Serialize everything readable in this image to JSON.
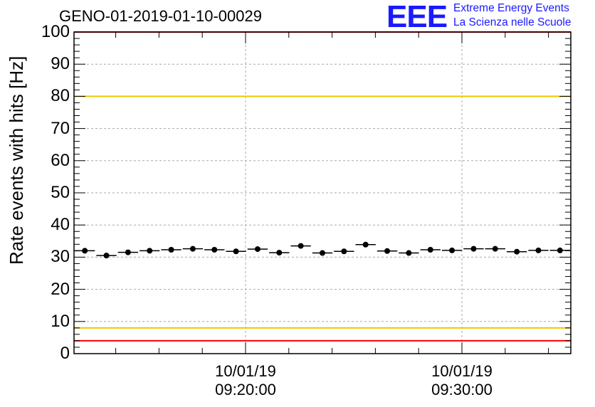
{
  "title": "GENO-01-2019-01-10-00029",
  "logo": {
    "mark": "EEE",
    "line1": "Extreme Energy Events",
    "line2": "La Scienza nelle Scuole",
    "color": "#1a1aff"
  },
  "chart_data": {
    "type": "scatter",
    "ylabel": "Rate events with hits [Hz]",
    "xlabel": "",
    "ylim": [
      0,
      100
    ],
    "yticks": [
      "0",
      "10",
      "20",
      "30",
      "40",
      "50",
      "60",
      "70",
      "80",
      "90",
      "100"
    ],
    "xticks": [
      {
        "date": "10/01/19",
        "time": "09:20:00"
      },
      {
        "date": "10/01/19",
        "time": "09:30:00"
      }
    ],
    "grid": true,
    "reference_lines": [
      {
        "value": 100,
        "color": "#ff0000"
      },
      {
        "value": 80,
        "color": "#f0c800"
      },
      {
        "value": 8,
        "color": "#f0c800"
      },
      {
        "value": 4,
        "color": "#ff0000"
      }
    ],
    "series": [
      {
        "values": [
          32.0,
          30.5,
          31.5,
          32.0,
          32.3,
          32.6,
          32.3,
          31.8,
          32.5,
          31.4,
          33.5,
          31.3,
          31.8,
          33.9,
          31.9,
          31.3,
          32.3,
          32.1,
          32.6,
          32.6,
          31.7,
          32.1,
          32.1
        ],
        "color": "#000000"
      }
    ]
  }
}
